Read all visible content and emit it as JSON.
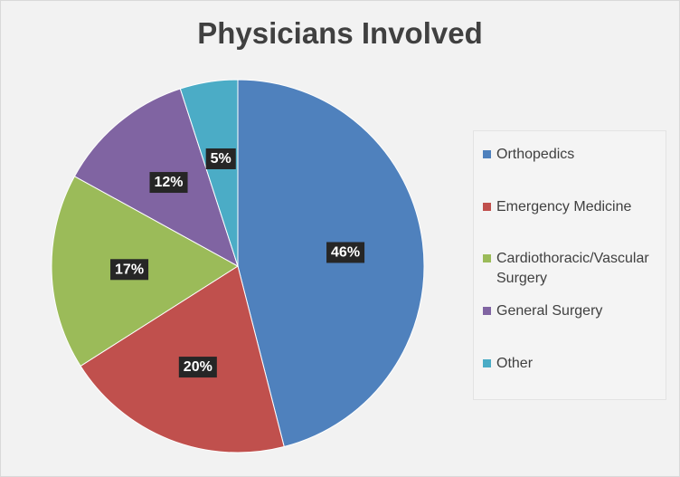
{
  "chart_data": {
    "type": "pie",
    "title": "Physicians Involved",
    "categories": [
      "Orthopedics",
      "Emergency Medicine",
      "Cardiothoracic/Vascular Surgery",
      "General Surgery",
      "Other"
    ],
    "values": [
      46,
      20,
      17,
      12,
      5
    ],
    "data_labels": [
      "46%",
      "20%",
      "17%",
      "12%",
      "5%"
    ],
    "colors": [
      "#4f81bd",
      "#c0504d",
      "#9bbb59",
      "#8064a2",
      "#4bacc6"
    ],
    "legend_position": "right"
  }
}
